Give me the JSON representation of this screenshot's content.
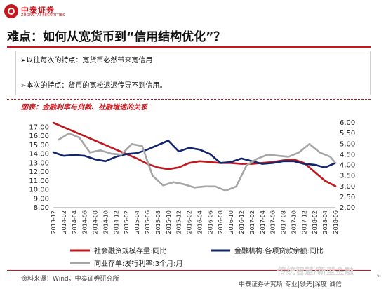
{
  "header": {
    "logo_cn": "中泰证券",
    "logo_en": "ZHONGTAI SECURITIES",
    "title": "难点：如何从宽货币到“信用结构优化”？"
  },
  "bullets": [
    "➢以往每次的特点：宽货币必然带来宽信用",
    "➢本次的特点：货币的宽松迟迟传导不到信用。"
  ],
  "figure_title": "图表：金融利率与贷款、社融增速的关系",
  "chart_data": {
    "type": "line",
    "x_labels": [
      "2013-12",
      "2014-02",
      "2014-04",
      "2014-06",
      "2014-08",
      "2014-10",
      "2014-12",
      "2015-02",
      "2015-04",
      "2015-06",
      "2015-08",
      "2015-10",
      "2015-12",
      "2016-02",
      "2016-04",
      "2016-06",
      "2016-08",
      "2016-10",
      "2016-12",
      "2017-02",
      "2017-04",
      "2017-06",
      "2017-08",
      "2017-10",
      "2017-12",
      "2018-02",
      "2018-04",
      "2018-06"
    ],
    "left_axis": {
      "ticks": [
        "17.00",
        "16.00",
        "15.00",
        "14.00",
        "13.00",
        "12.00",
        "11.00",
        "10.00",
        "9.00",
        "8.00"
      ],
      "min": 8,
      "max": 17.5
    },
    "right_axis": {
      "ticks": [
        "6.00",
        "5.50",
        "5.00",
        "4.50",
        "4.00",
        "3.50",
        "3.00",
        "2.50",
        "2.00"
      ],
      "min": 2,
      "max": 6
    },
    "series": [
      {
        "name": "社会融资规模存量:同比",
        "axis": "left",
        "color": "#c0181f",
        "x_from": 0,
        "values": [
          17.5,
          17.0,
          16.5,
          16.0,
          15.5,
          15.0,
          14.5,
          14.0,
          13.5,
          12.9,
          12.5,
          12.3,
          12.5,
          13.0,
          13.2,
          13.1,
          13.0,
          13.0,
          12.9,
          12.9,
          13.0,
          13.1,
          13.3,
          13.4,
          13.0,
          12.0,
          11.0,
          10.4
        ]
      },
      {
        "name": "金融机构:各项贷款余额:同比",
        "axis": "left",
        "color": "#13256b",
        "x_from": 0,
        "values": [
          14.2,
          13.8,
          13.9,
          13.8,
          13.4,
          13.2,
          13.7,
          14.0,
          14.1,
          14.5,
          15.0,
          15.5,
          14.3,
          14.7,
          14.5,
          14.0,
          13.0,
          13.1,
          13.5,
          13.2,
          12.9,
          13.0,
          13.2,
          13.2,
          12.9,
          12.8,
          12.5,
          13.0
        ]
      },
      {
        "name": "同业存单:发行利率:3个月:月",
        "axis": "right",
        "color": "#a6a6a6",
        "x_from": 0.5,
        "values": [
          5.2,
          5.5,
          5.3,
          4.6,
          4.7,
          4.55,
          4.5,
          5.0,
          4.9,
          3.5,
          3.05,
          3.2,
          3.1,
          2.95,
          3.0,
          3.0,
          2.8,
          3.0,
          4.0,
          4.3,
          4.5,
          4.45,
          4.4,
          4.6,
          5.0,
          4.6,
          4.4,
          4.1
        ]
      }
    ],
    "legend_placement": "bottom"
  },
  "source": "资料来源：Wind，中泰证券研究所",
  "footer_text": "中泰证券研究所  专业|领先|深度|诚信",
  "watermark": "传统智慧/新型金融",
  "page_number": "6"
}
